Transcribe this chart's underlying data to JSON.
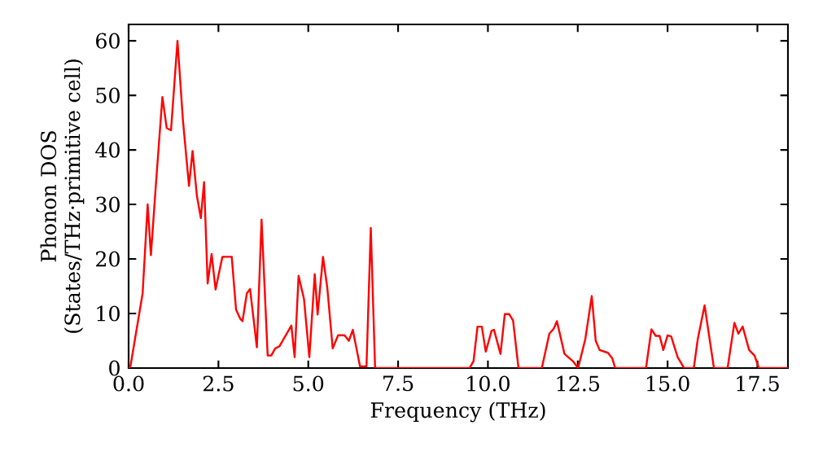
{
  "chart_data": {
    "type": "line",
    "xlabel": "Frequency (THz)",
    "ylabel": "Phonon DOS (States/THz·primitive cell)",
    "xlim": [
      0,
      18.35
    ],
    "ylim": [
      0,
      63
    ],
    "xticks": [
      {
        "value": 0,
        "label": "0.0"
      },
      2.5,
      {
        "value": 5,
        "label": "5.0"
      },
      7.5,
      {
        "value": 10,
        "label": "10.0"
      },
      12.5,
      {
        "value": 15,
        "label": "15.0"
      },
      17.5
    ],
    "yticks": [
      0,
      10,
      20,
      30,
      40,
      50,
      60
    ],
    "series": [
      {
        "color": "#ff0000",
        "x": [
          0,
          0.05,
          0.39,
          0.53,
          0.62,
          0.76,
          0.94,
          1.06,
          1.18,
          1.36,
          1.51,
          1.68,
          1.78,
          1.9,
          2.01,
          2.1,
          2.2,
          2.31,
          2.42,
          2.61,
          2.87,
          2.99,
          3.11,
          3.17,
          3.29,
          3.38,
          3.57,
          3.7,
          3.87,
          3.97,
          4.08,
          4.2,
          4.53,
          4.62,
          4.73,
          4.88,
          5.03,
          5.18,
          5.26,
          5.41,
          5.53,
          5.68,
          5.83,
          6.01,
          6.13,
          6.24,
          6.44,
          6.62,
          6.74,
          6.86,
          9.49,
          9.6,
          9.71,
          9.83,
          9.94,
          10.1,
          10.17,
          10.35,
          10.47,
          10.59,
          10.7,
          10.85,
          11.5,
          11.71,
          11.83,
          11.92,
          12.13,
          12.36,
          12.51,
          12.71,
          12.89,
          13.0,
          13.11,
          13.34,
          13.46,
          13.54,
          14.4,
          14.55,
          14.67,
          14.78,
          14.88,
          15.0,
          15.1,
          15.28,
          15.46,
          15.73,
          15.84,
          16.03,
          16.29,
          16.67,
          16.86,
          16.97,
          17.09,
          17.27,
          17.42,
          17.54,
          18.35
        ],
        "values": [
          0,
          0.3,
          13.7,
          30,
          20.7,
          33.7,
          49.7,
          44,
          43.6,
          60,
          45.6,
          33.4,
          39.8,
          31.6,
          27.5,
          34.1,
          15.5,
          20.9,
          14.4,
          20.4,
          20.4,
          10.7,
          9,
          8.6,
          13.7,
          14.5,
          3.8,
          27.2,
          2.3,
          2.3,
          3.6,
          4,
          7.8,
          2,
          16.9,
          12.7,
          2,
          17.2,
          9.8,
          20.4,
          14.7,
          3.6,
          6,
          6,
          5,
          7,
          0.3,
          0.3,
          25.7,
          0,
          0,
          1.3,
          7.6,
          7.6,
          3,
          6.8,
          7,
          2.6,
          9.9,
          9.9,
          8.7,
          0,
          0,
          6.3,
          7.2,
          8.6,
          2.6,
          1.3,
          0,
          5.3,
          13.2,
          5,
          3.3,
          2.8,
          1.8,
          0,
          0,
          7.1,
          5.9,
          5.9,
          3.3,
          6,
          5.8,
          2,
          0,
          0,
          5.3,
          11.5,
          0,
          0,
          8.3,
          6.3,
          7.6,
          3.3,
          2.3,
          0,
          0
        ]
      }
    ]
  }
}
